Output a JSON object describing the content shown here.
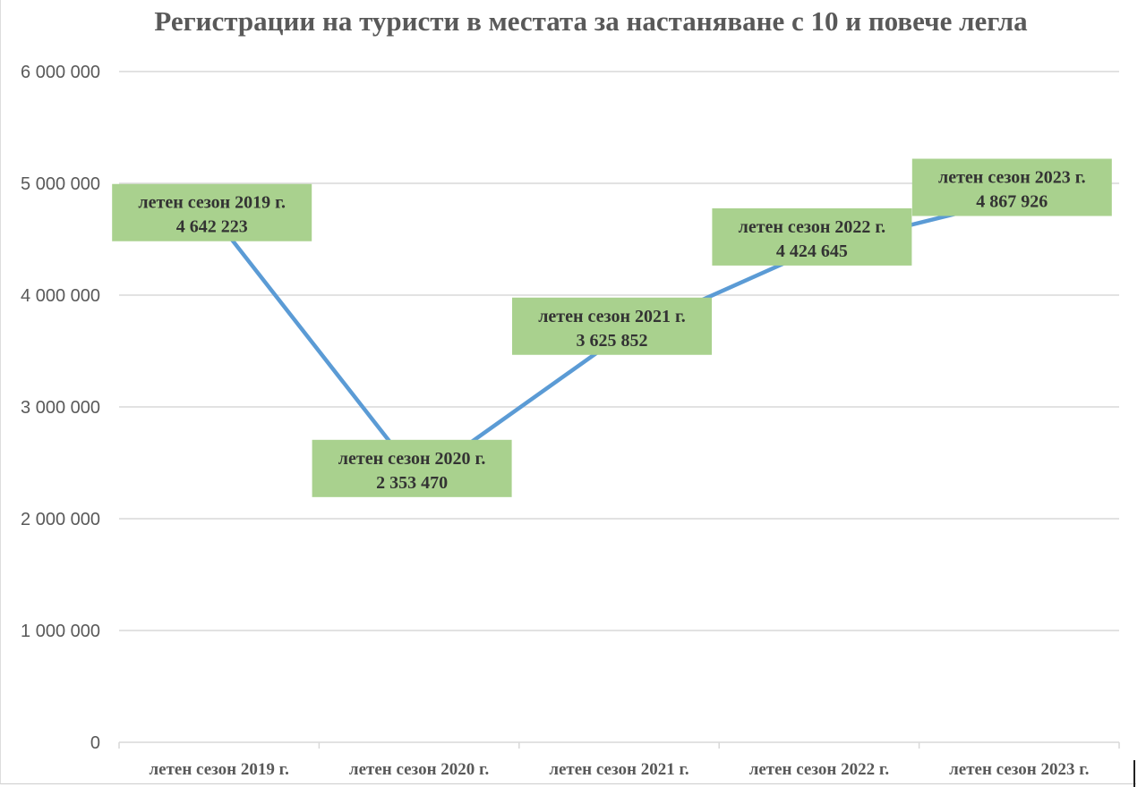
{
  "chart_data": {
    "type": "line",
    "title": "Регистрации на туристи в местата за настаняване с 10 и повече легла",
    "categories": [
      "летен сезон 2019 г.",
      "летен сезон 2020 г.",
      "летен сезон 2021 г.",
      "летен сезон 2022 г.",
      "летен сезон 2023 г."
    ],
    "series": [
      {
        "values": [
          4642223,
          2353470,
          3625852,
          4424645,
          4867926
        ]
      }
    ],
    "data_labels": [
      "4 642 223",
      "2 353 470",
      "3 625 852",
      "4 424 645",
      "4 867 926"
    ],
    "ylim": [
      0,
      6000000
    ],
    "yticks": [
      0,
      1000000,
      2000000,
      3000000,
      4000000,
      5000000,
      6000000
    ],
    "ytick_labels": [
      "0",
      "1 000 000",
      "2 000 000",
      "3 000 000",
      "4 000 000",
      "5 000 000",
      "6 000 000"
    ],
    "grid": true,
    "legend": "none",
    "colors": {
      "line": "#5b9bd5",
      "label_box": "#a9d18e",
      "grid": "#d9d9d9",
      "text": "#595959"
    }
  }
}
